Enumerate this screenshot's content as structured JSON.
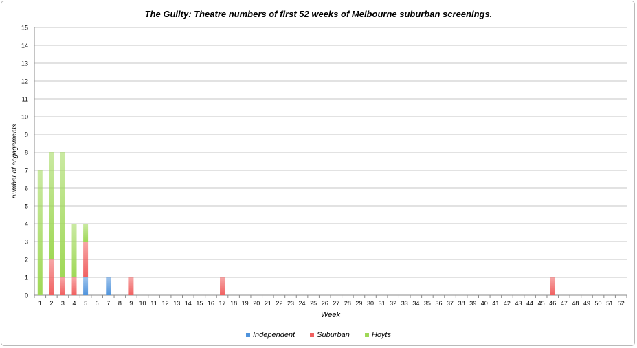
{
  "chart_data": {
    "type": "bar",
    "stacked": true,
    "title": "The Guilty: Theatre numbers of first 52 weeks of Melbourne suburban screenings.",
    "xlabel": "Week",
    "ylabel": "number of engagements",
    "ylim": [
      0,
      15
    ],
    "yticks": [
      "0",
      "1",
      "2",
      "3",
      "4",
      "5",
      "6",
      "7",
      "8",
      "9",
      "10",
      "11",
      "12",
      "13",
      "14",
      "15"
    ],
    "categories": [
      "1",
      "2",
      "3",
      "4",
      "5",
      "6",
      "7",
      "8",
      "9",
      "10",
      "11",
      "12",
      "13",
      "14",
      "15",
      "16",
      "17",
      "18",
      "19",
      "20",
      "21",
      "22",
      "23",
      "24",
      "25",
      "26",
      "27",
      "28",
      "29",
      "30",
      "31",
      "32",
      "33",
      "34",
      "35",
      "36",
      "37",
      "38",
      "39",
      "40",
      "41",
      "42",
      "43",
      "44",
      "45",
      "46",
      "47",
      "48",
      "49",
      "50",
      "51",
      "52"
    ],
    "grid": true,
    "legend_position": "bottom",
    "series": [
      {
        "name": "Independent",
        "color": "#4f93dc",
        "values": [
          0,
          0,
          0,
          0,
          1,
          0,
          1,
          0,
          0,
          0,
          0,
          0,
          0,
          0,
          0,
          0,
          0,
          0,
          0,
          0,
          0,
          0,
          0,
          0,
          0,
          0,
          0,
          0,
          0,
          0,
          0,
          0,
          0,
          0,
          0,
          0,
          0,
          0,
          0,
          0,
          0,
          0,
          0,
          0,
          0,
          0,
          0,
          0,
          0,
          0,
          0,
          0
        ]
      },
      {
        "name": "Suburban",
        "color": "#f06060",
        "values": [
          0,
          2,
          1,
          1,
          2,
          0,
          0,
          0,
          1,
          0,
          0,
          0,
          0,
          0,
          0,
          0,
          1,
          0,
          0,
          0,
          0,
          0,
          0,
          0,
          0,
          0,
          0,
          0,
          0,
          0,
          0,
          0,
          0,
          0,
          0,
          0,
          0,
          0,
          0,
          0,
          0,
          0,
          0,
          0,
          0,
          1,
          0,
          0,
          0,
          0,
          0,
          0
        ]
      },
      {
        "name": "Hoyts",
        "color": "#9fd856",
        "values": [
          7,
          6,
          7,
          3,
          1,
          0,
          0,
          0,
          0,
          0,
          0,
          0,
          0,
          0,
          0,
          0,
          0,
          0,
          0,
          0,
          0,
          0,
          0,
          0,
          0,
          0,
          0,
          0,
          0,
          0,
          0,
          0,
          0,
          0,
          0,
          0,
          0,
          0,
          0,
          0,
          0,
          0,
          0,
          0,
          0,
          0,
          0,
          0,
          0,
          0,
          0,
          0
        ]
      }
    ]
  }
}
